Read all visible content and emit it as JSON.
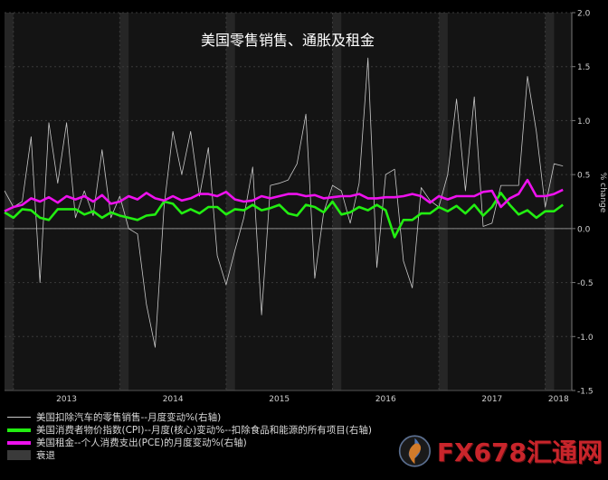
{
  "chart_data": {
    "type": "line",
    "title": "美国零售销售、通胀及租金",
    "ylabel": "% change",
    "ylim": [
      -1.5,
      2.0
    ],
    "y_axis_side": "right",
    "y_ticks": [
      "2.0",
      "1.5",
      "1.0",
      "0.5",
      "0.0",
      "-0.5",
      "-1.0",
      "-1.5"
    ],
    "x_tick_labels": [
      "2013",
      "2014",
      "2015",
      "2016",
      "2017",
      "2018"
    ],
    "x_range": [
      "2012-12",
      "2018-04"
    ],
    "grid": true,
    "legend_position": "bottom-left",
    "recession_shading": [
      {
        "start": "2012-12",
        "end": "2013-01"
      },
      {
        "start": "2014-01",
        "end": "2014-02"
      },
      {
        "start": "2015-01",
        "end": "2015-02"
      },
      {
        "start": "2016-01",
        "end": "2016-02"
      },
      {
        "start": "2017-01",
        "end": "2017-02"
      },
      {
        "start": "2018-01",
        "end": "2018-02"
      }
    ],
    "x": [
      "2012-12",
      "2013-01",
      "2013-02",
      "2013-03",
      "2013-04",
      "2013-05",
      "2013-06",
      "2013-07",
      "2013-08",
      "2013-09",
      "2013-10",
      "2013-11",
      "2013-12",
      "2014-01",
      "2014-02",
      "2014-03",
      "2014-04",
      "2014-05",
      "2014-06",
      "2014-07",
      "2014-08",
      "2014-09",
      "2014-10",
      "2014-11",
      "2014-12",
      "2015-01",
      "2015-02",
      "2015-03",
      "2015-04",
      "2015-05",
      "2015-06",
      "2015-07",
      "2015-08",
      "2015-09",
      "2015-10",
      "2015-11",
      "2015-12",
      "2016-01",
      "2016-02",
      "2016-03",
      "2016-04",
      "2016-05",
      "2016-06",
      "2016-07",
      "2016-08",
      "2016-09",
      "2016-10",
      "2016-11",
      "2016-12",
      "2017-01",
      "2017-02",
      "2017-03",
      "2017-04",
      "2017-05",
      "2017-06",
      "2017-07",
      "2017-08",
      "2017-09",
      "2017-10",
      "2017-11",
      "2017-12",
      "2018-01",
      "2018-02",
      "2018-03"
    ],
    "series": [
      {
        "name": "美国扣除汽车的零售销售--月度变动%(右轴)",
        "color": "#c8c8c8",
        "values": [
          0.35,
          0.2,
          0.25,
          0.85,
          -0.5,
          0.98,
          0.42,
          0.98,
          0.1,
          0.35,
          0.12,
          0.73,
          0.1,
          0.3,
          0.0,
          -0.05,
          -0.7,
          -1.1,
          0.2,
          0.9,
          0.5,
          0.9,
          0.3,
          0.75,
          -0.25,
          -0.52,
          -0.2,
          0.1,
          0.57,
          -0.8,
          0.4,
          0.42,
          0.45,
          0.6,
          1.06,
          -0.46,
          0.15,
          0.4,
          0.35,
          0.05,
          0.42,
          1.58,
          -0.36,
          0.5,
          0.55,
          -0.3,
          -0.55,
          0.38,
          0.26,
          0.2,
          0.5,
          1.2,
          0.35,
          1.22,
          0.02,
          0.05,
          0.4,
          0.4,
          0.4,
          1.41,
          0.9,
          0.2,
          0.6,
          0.58
        ]
      },
      {
        "name": "美国消费者物价指数(CPI)--月度(核心)变动%--扣除食品和能源的所有项目(右轴)",
        "color": "#22ee11",
        "values": [
          0.15,
          0.1,
          0.18,
          0.17,
          0.1,
          0.08,
          0.18,
          0.18,
          0.18,
          0.13,
          0.16,
          0.1,
          0.15,
          0.12,
          0.1,
          0.08,
          0.12,
          0.13,
          0.25,
          0.23,
          0.14,
          0.18,
          0.14,
          0.2,
          0.2,
          0.13,
          0.18,
          0.17,
          0.22,
          0.17,
          0.19,
          0.22,
          0.14,
          0.12,
          0.22,
          0.2,
          0.15,
          0.25,
          0.13,
          0.15,
          0.2,
          0.17,
          0.22,
          0.17,
          -0.08,
          0.08,
          0.08,
          0.14,
          0.14,
          0.2,
          0.16,
          0.21,
          0.14,
          0.22,
          0.12,
          0.2,
          0.33,
          0.22,
          0.13,
          0.17,
          0.1,
          0.16,
          0.16,
          0.22
        ]
      },
      {
        "name": "美国租金--个人消费支出(PCE)的月度变动%(右轴)",
        "color": "#ee11ee",
        "values": [
          0.16,
          0.2,
          0.22,
          0.28,
          0.25,
          0.29,
          0.24,
          0.3,
          0.27,
          0.3,
          0.25,
          0.31,
          0.23,
          0.25,
          0.3,
          0.27,
          0.33,
          0.28,
          0.26,
          0.3,
          0.26,
          0.28,
          0.32,
          0.32,
          0.3,
          0.34,
          0.27,
          0.25,
          0.26,
          0.3,
          0.28,
          0.3,
          0.32,
          0.32,
          0.3,
          0.31,
          0.28,
          0.29,
          0.3,
          0.3,
          0.32,
          0.28,
          0.28,
          0.29,
          0.29,
          0.3,
          0.32,
          0.3,
          0.24,
          0.3,
          0.27,
          0.3,
          0.3,
          0.3,
          0.34,
          0.35,
          0.2,
          0.28,
          0.32,
          0.45,
          0.3,
          0.3,
          0.32,
          0.36
        ]
      }
    ]
  },
  "legend": {
    "items": [
      {
        "label": "美国扣除汽车的零售销售--月度变动%(右轴)",
        "color": "#c8c8c8",
        "kind": "line-thin"
      },
      {
        "label": "美国消费者物价指数(CPI)--月度(核心)变动%--扣除食品和能源的所有项目(右轴)",
        "color": "#22ee11",
        "kind": "line-thick"
      },
      {
        "label": "美国租金--个人消费支出(PCE)的月度变动%(右轴)",
        "color": "#ee11ee",
        "kind": "line-thick"
      },
      {
        "label": "衰退",
        "color": "#3a3a3a",
        "kind": "box"
      }
    ]
  },
  "watermark": {
    "text": "FX678汇通网"
  }
}
